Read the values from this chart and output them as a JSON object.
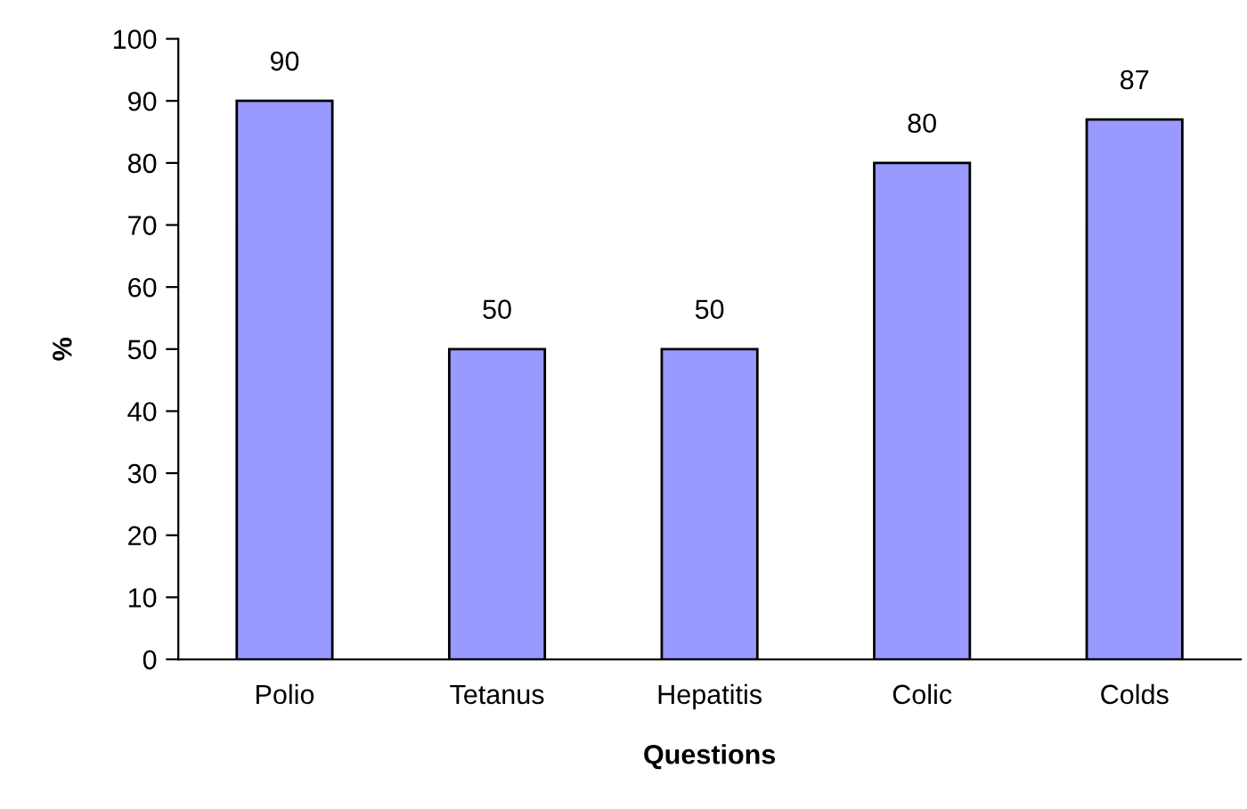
{
  "chart_data": {
    "type": "bar",
    "xlabel": "Questions",
    "ylabel": "%",
    "categories": [
      "Polio",
      "Tetanus",
      "Hepatitis",
      "Colic",
      "Colds"
    ],
    "values": [
      90,
      50,
      50,
      80,
      87
    ],
    "color": "#9999ff",
    "ylim": [
      0,
      100
    ],
    "yticks": [
      0,
      10,
      20,
      30,
      40,
      50,
      60,
      70,
      80,
      90,
      100
    ],
    "data_labels": true,
    "grid": false,
    "legend": false
  }
}
